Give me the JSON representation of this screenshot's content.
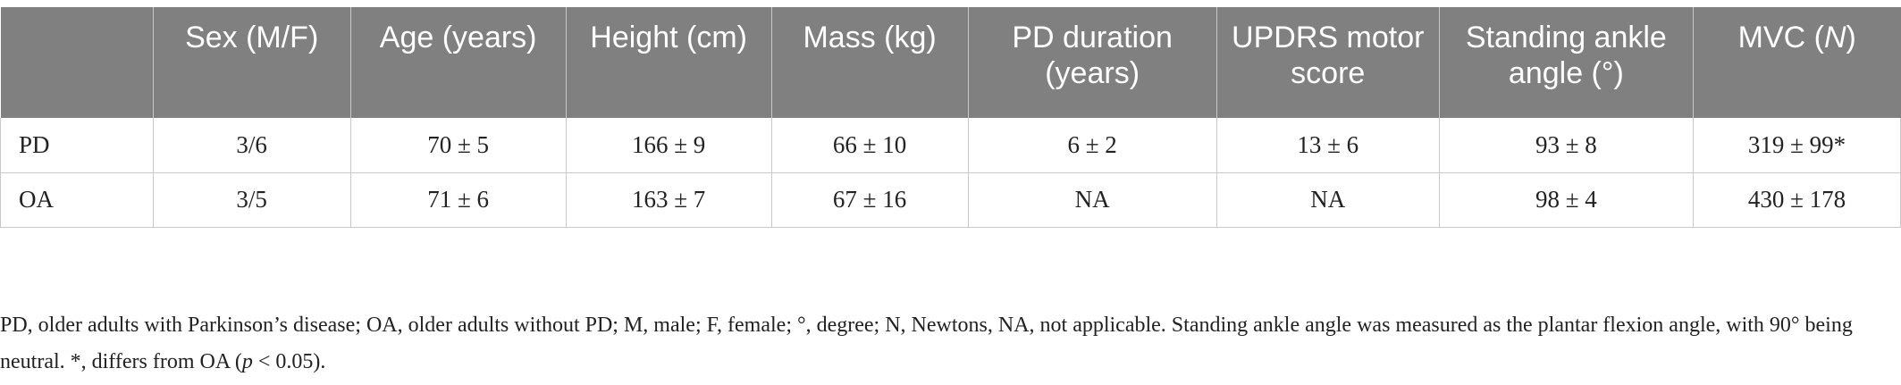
{
  "table": {
    "headers": [
      "",
      "Sex (M/F)",
      "Age (years)",
      "Height (cm)",
      "Mass (kg)",
      "PD duration (years)",
      "UPDRS motor score",
      "Standing ankle angle (°)"
    ],
    "mvc_header": {
      "prefix": "MVC (",
      "unit": "N",
      "suffix": ")"
    },
    "rows": [
      [
        "PD",
        "3/6",
        "70 ± 5",
        "166 ± 9",
        "66 ± 10",
        "6 ± 2",
        "13 ± 6",
        "93 ± 8",
        "319 ± 99*"
      ],
      [
        "OA",
        "3/5",
        "71 ± 6",
        "163 ± 7",
        "67 ± 16",
        "NA",
        "NA",
        "98 ± 4",
        "430 ± 178"
      ]
    ]
  },
  "footnote": {
    "main": "PD, older adults with Parkinson’s disease; OA, older adults without PD; M, male; F, female; °, degree; N, Newtons, NA, not applicable. Standing ankle angle was measured as the plantar flexion angle, with 90° being neutral. *, differs from OA (",
    "p": "p",
    "tail": " < 0.05)."
  }
}
